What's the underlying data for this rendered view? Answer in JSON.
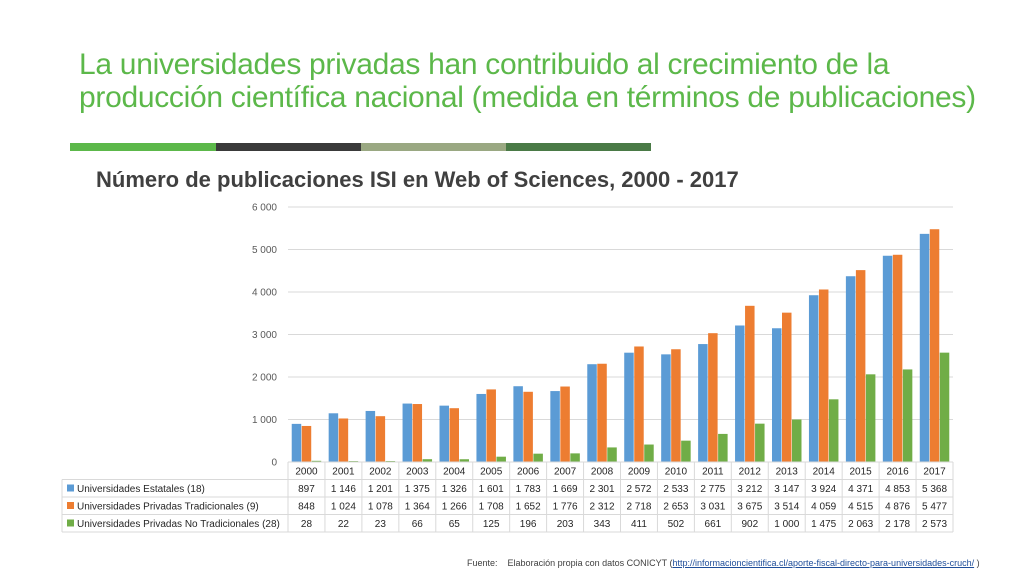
{
  "slide": {
    "title_line1": "La universidades privadas han contribuido al crecimiento de la",
    "title_line2": "producción científica nacional (medida en términos de publicaciones)",
    "title_color": "#5cb84a",
    "rule_colors": [
      "#5cb84a",
      "#3a3a3a",
      "#9aa882",
      "#4a7a46"
    ]
  },
  "source": {
    "label": "Fuente:",
    "text": "Elaboración propia con datos CONICYT (",
    "link": "http://informacioncientifica.cl/aporte-fiscal-directo-para-universidades-cruch/",
    "closing": " )"
  },
  "chart_data": {
    "type": "bar",
    "title": "Número de publicaciones ISI en Web of Sciences, 2000 - 2017",
    "categories": [
      "2000",
      "2001",
      "2002",
      "2003",
      "2004",
      "2005",
      "2006",
      "2007",
      "2008",
      "2009",
      "2010",
      "2011",
      "2012",
      "2013",
      "2014",
      "2015",
      "2016",
      "2017"
    ],
    "ylim": [
      0,
      6000
    ],
    "yticks": [
      0,
      1000,
      2000,
      3000,
      4000,
      5000,
      6000
    ],
    "ytick_labels": [
      "0",
      "1 000",
      "2 000",
      "3 000",
      "4 000",
      "5 000",
      "6 000"
    ],
    "grid": true,
    "legend": "data-table",
    "series": [
      {
        "name": "Universidades Estatales (18)",
        "color": "#5b9bd5",
        "values": [
          897,
          1146,
          1201,
          1375,
          1326,
          1601,
          1783,
          1669,
          2301,
          2572,
          2533,
          2775,
          3212,
          3147,
          3924,
          4371,
          4853,
          5368
        ],
        "labels": [
          "897",
          "1 146",
          "1 201",
          "1 375",
          "1 326",
          "1 601",
          "1 783",
          "1 669",
          "2 301",
          "2 572",
          "2 533",
          "2 775",
          "3 212",
          "3 147",
          "3 924",
          "4 371",
          "4 853",
          "5 368"
        ]
      },
      {
        "name": "Universidades Privadas Tradicionales (9)",
        "color": "#ed7d31",
        "values": [
          848,
          1024,
          1078,
          1364,
          1266,
          1708,
          1652,
          1776,
          2312,
          2718,
          2653,
          3031,
          3675,
          3514,
          4059,
          4515,
          4876,
          5477
        ],
        "labels": [
          "848",
          "1 024",
          "1 078",
          "1 364",
          "1 266",
          "1 708",
          "1 652",
          "1 776",
          "2 312",
          "2 718",
          "2 653",
          "3 031",
          "3 675",
          "3 514",
          "4 059",
          "4 515",
          "4 876",
          "5 477"
        ]
      },
      {
        "name": "Universidades Privadas No Tradicionales (28)",
        "color": "#70ad47",
        "values": [
          28,
          22,
          23,
          66,
          65,
          125,
          196,
          203,
          343,
          411,
          502,
          661,
          902,
          1000,
          1475,
          2063,
          2178,
          2573
        ],
        "labels": [
          "28",
          "22",
          "23",
          "66",
          "65",
          "125",
          "196",
          "203",
          "343",
          "411",
          "502",
          "661",
          "902",
          "1 000",
          "1 475",
          "2 063",
          "2 178",
          "2 573"
        ]
      }
    ]
  }
}
